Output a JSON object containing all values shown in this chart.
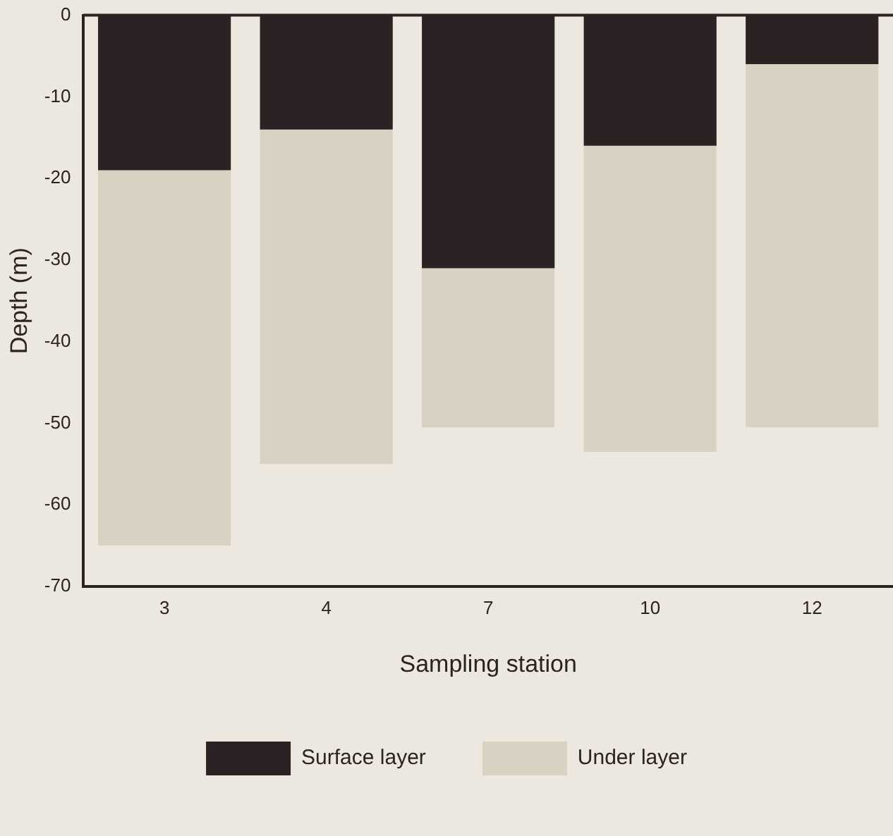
{
  "chart_data": {
    "type": "bar",
    "stacked": true,
    "xlabel": "Sampling station",
    "ylabel": "Depth (m)",
    "categories": [
      "3",
      "4",
      "7",
      "10",
      "12"
    ],
    "series": [
      {
        "name": "Surface layer",
        "color": "#2b2224",
        "values": [
          -19,
          -14,
          -31,
          -16,
          -6
        ]
      },
      {
        "name": "Under layer",
        "color": "#d9d1c2",
        "values": [
          -46,
          -41,
          -19.5,
          -37.5,
          -44.5
        ]
      }
    ],
    "ylim": [
      -70,
      0
    ],
    "yticks": [
      -70,
      -60,
      -50,
      -40,
      -30,
      -20,
      -10,
      0
    ],
    "grid": false,
    "legend": "bottom"
  }
}
